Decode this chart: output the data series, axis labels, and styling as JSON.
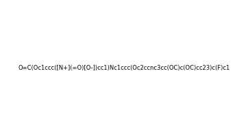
{
  "smiles": "O=C(Oc1ccc([N+](=O)[O-])cc1)Nc1ccc(Oc2ccnc3cc(OC)c(OC)cc23)c(F)c1",
  "title": "",
  "figwidth": 3.62,
  "figheight": 1.99,
  "dpi": 100,
  "background": "#ffffff"
}
